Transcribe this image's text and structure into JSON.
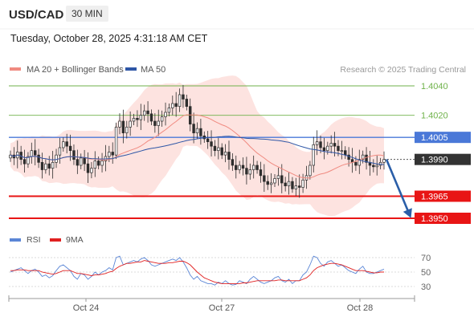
{
  "header": {
    "symbol": "USD/CAD",
    "interval": "30 MIN",
    "timestamp": "Tuesday, October 28, 2025 4:31:18 AM CET"
  },
  "legend": {
    "ma20": {
      "label": "MA 20 + Bollinger Bands",
      "color": "#f08a80"
    },
    "ma50": {
      "label": "MA 50",
      "color": "#2e56a6"
    },
    "credit": "Research © 2025 Trading Central"
  },
  "rsi_legend": {
    "rsi": {
      "label": "RSI",
      "color": "#5b86d6"
    },
    "ma9": {
      "label": "9MA",
      "color": "#e02020"
    }
  },
  "colors": {
    "support_red": "#e81515",
    "resistance_blue": "#4a78d8",
    "resistance_green": "#6fb24a",
    "current_price": "#333333",
    "bollinger_fill": "#fde0dd",
    "arrow": "#2a5ea8"
  },
  "chart_data": [
    {
      "type": "candlestick",
      "title": "USD/CAD",
      "x_ticks": [
        "Oct 24",
        "Oct 27",
        "Oct 28"
      ],
      "ylim": [
        1.3945,
        1.4045
      ],
      "levels": [
        {
          "value": 1.404,
          "label": "1.4040",
          "kind": "resistance",
          "color": "#6fb24a"
        },
        {
          "value": 1.402,
          "label": "1.4020",
          "kind": "resistance",
          "color": "#6fb24a"
        },
        {
          "value": 1.4005,
          "label": "1.4005",
          "kind": "pivot",
          "color": "#4a78d8"
        },
        {
          "value": 1.399,
          "label": "1.3990",
          "kind": "current",
          "color": "#333333"
        },
        {
          "value": 1.3965,
          "label": "1.3965",
          "kind": "support",
          "color": "#e81515"
        },
        {
          "value": 1.395,
          "label": "1.3950",
          "kind": "support",
          "color": "#e81515"
        }
      ],
      "close": [
        1.3993,
        1.3991,
        1.3995,
        1.399,
        1.3987,
        1.3992,
        1.3996,
        1.3993,
        1.3988,
        1.3983,
        1.3987,
        1.3984,
        1.3988,
        1.3993,
        1.3998,
        1.4002,
        1.3999,
        1.3996,
        1.399,
        1.3986,
        1.3991,
        1.3987,
        1.3981,
        1.3984,
        1.3989,
        1.3986,
        1.3989,
        1.3992,
        1.3995,
        1.3993,
        1.4012,
        1.4016,
        1.4008,
        1.4012,
        1.4016,
        1.4018,
        1.4017,
        1.402,
        1.4023,
        1.4021,
        1.4016,
        1.4013,
        1.4016,
        1.4019,
        1.4022,
        1.4025,
        1.4028,
        1.4026,
        1.4034,
        1.4031,
        1.4026,
        1.4014,
        1.4008,
        1.4011,
        1.4006,
        1.4004,
        1.4002,
        1.3999,
        1.3996,
        1.3998,
        1.3993,
        1.3995,
        1.399,
        1.3986,
        1.3983,
        1.3986,
        1.3984,
        1.398,
        1.3983,
        1.3986,
        1.3983,
        1.3979,
        1.3975,
        1.3973,
        1.3974,
        1.3977,
        1.3979,
        1.3974,
        1.3972,
        1.3975,
        1.397,
        1.3972,
        1.3971,
        1.3976,
        1.3979,
        1.3986,
        1.4,
        1.4002,
        1.3998,
        1.3996,
        1.3999,
        1.4001,
        1.3999,
        1.3996,
        1.3996,
        1.3993,
        1.399,
        1.3988,
        1.3986,
        1.399,
        1.3993,
        1.3988,
        1.3986,
        1.3985,
        1.3986,
        1.3988,
        1.399
      ],
      "series": [
        {
          "name": "MA 20 + Bollinger Bands"
        },
        {
          "name": "MA 50"
        }
      ]
    },
    {
      "type": "line",
      "title": "RSI",
      "ylim": [
        25,
        75
      ],
      "y_ticks": [
        "70",
        "50",
        "30"
      ],
      "series": [
        {
          "name": "RSI",
          "values": [
            50,
            52,
            54,
            56,
            52,
            48,
            52,
            54,
            50,
            44,
            46,
            42,
            45,
            52,
            58,
            60,
            56,
            52,
            44,
            40,
            48,
            46,
            40,
            44,
            50,
            46,
            50,
            52,
            56,
            53,
            70,
            72,
            60,
            62,
            64,
            66,
            64,
            68,
            70,
            66,
            60,
            58,
            60,
            62,
            64,
            66,
            68,
            66,
            70,
            64,
            56,
            46,
            40,
            44,
            38,
            36,
            34,
            34,
            32,
            36,
            34,
            38,
            34,
            32,
            33,
            38,
            36,
            34,
            40,
            44,
            40,
            36,
            34,
            36,
            38,
            42,
            44,
            38,
            36,
            40,
            34,
            38,
            38,
            46,
            50,
            60,
            72,
            70,
            62,
            58,
            64,
            66,
            62,
            58,
            60,
            56,
            52,
            50,
            48,
            54,
            58,
            50,
            48,
            48,
            50,
            52,
            54
          ]
        },
        {
          "name": "9MA",
          "values": [
            52,
            52,
            53,
            53,
            53,
            52,
            52,
            52,
            52,
            50,
            49,
            48,
            47,
            48,
            50,
            52,
            52,
            52,
            50,
            48,
            48,
            47,
            46,
            45,
            46,
            46,
            47,
            48,
            50,
            51,
            55,
            58,
            60,
            62,
            62,
            63,
            64,
            64,
            66,
            65,
            64,
            63,
            62,
            62,
            62,
            63,
            63,
            64,
            65,
            65,
            63,
            60,
            55,
            50,
            46,
            42,
            40,
            38,
            36,
            35,
            34,
            34,
            34,
            34,
            34,
            34,
            35,
            35,
            36,
            37,
            38,
            38,
            38,
            38,
            38,
            38,
            39,
            39,
            38,
            38,
            38,
            38,
            38,
            40,
            42,
            46,
            52,
            56,
            58,
            60,
            61,
            62,
            62,
            61,
            60,
            58,
            56,
            54,
            52,
            52,
            52,
            51,
            50,
            49,
            49,
            50,
            50
          ]
        }
      ]
    }
  ]
}
